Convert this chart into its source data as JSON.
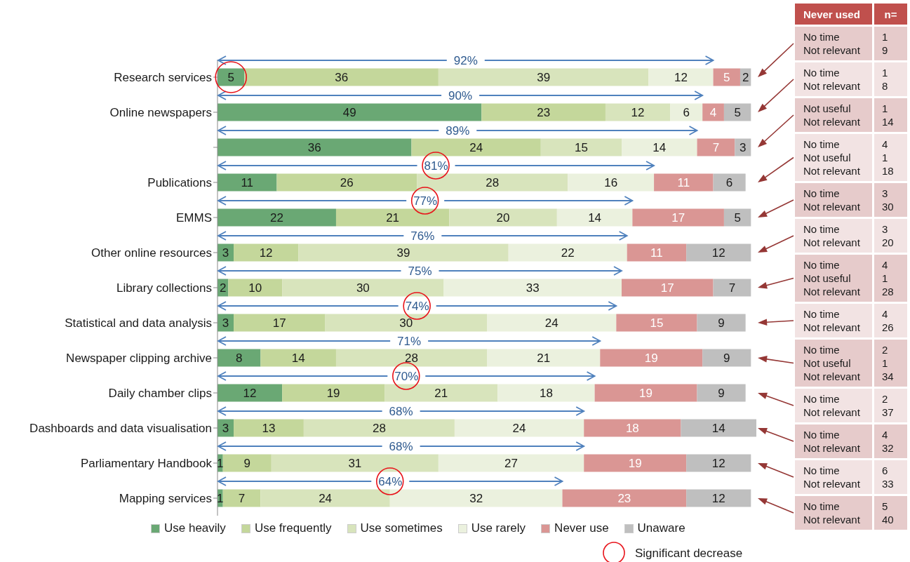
{
  "chart_data": {
    "type": "bar",
    "orientation": "horizontal",
    "stacked": true,
    "data_labels": true,
    "legend": "bottom",
    "grid": false,
    "tick_labels": "y",
    "xlim": [
      0,
      100
    ],
    "categories": [
      "Research services",
      "Online newspapers",
      null,
      "Publications",
      "EMMS",
      "Other online resources",
      "Library collections",
      "Statistical and data analysis",
      "Newspaper clipping archive",
      "Daily chamber clips",
      "Dashboards and data visualisation",
      "Parliamentary Handbook",
      "Mapping services"
    ],
    "series": [
      {
        "name": "Use heavily",
        "color": "#6aa874",
        "values": [
          5,
          49,
          36,
          11,
          22,
          3,
          2,
          3,
          8,
          12,
          3,
          1,
          1
        ]
      },
      {
        "name": "Use frequently",
        "color": "#c4d79b",
        "values": [
          36,
          23,
          24,
          26,
          21,
          12,
          10,
          17,
          14,
          19,
          13,
          9,
          7
        ]
      },
      {
        "name": "Use sometimes",
        "color": "#d8e4bc",
        "values": [
          39,
          12,
          15,
          28,
          20,
          39,
          30,
          30,
          28,
          21,
          28,
          31,
          24
        ]
      },
      {
        "name": "Use rarely",
        "color": "#ebf1de",
        "values": [
          12,
          6,
          14,
          16,
          14,
          22,
          33,
          24,
          21,
          18,
          24,
          27,
          32
        ]
      },
      {
        "name": "Never use",
        "color": "#da9694",
        "values": [
          5,
          4,
          7,
          11,
          17,
          11,
          17,
          15,
          19,
          19,
          18,
          19,
          23
        ]
      },
      {
        "name": "Unaware",
        "color": "#bfbfbf",
        "values": [
          2,
          5,
          3,
          6,
          5,
          12,
          7,
          9,
          9,
          9,
          14,
          12,
          12
        ]
      }
    ],
    "annotations": [
      "92%",
      "90%",
      "89%",
      "81%",
      "77%",
      "76%",
      "75%",
      "74%",
      "71%",
      "70%",
      "68%",
      "68%",
      "64%",
      "Significant decrease",
      "Never used",
      "n=",
      "No time\nNot relevant",
      "1\n9",
      "No time\nNot relevant",
      "1\n8",
      "Not useful\nNot relevant",
      "1\n14",
      "No time\nNot useful\nNot relevant",
      "4\n1\n18",
      "No time\nNot relevant",
      "3\n30",
      "No time\nNot relevant",
      "3\n20",
      "No time\nNot useful\nNot relevant",
      "4\n1\n28",
      "No time\nNot relevant",
      "4\n26",
      "No time\nNot useful\nNot relevant",
      "2\n1\n34",
      "No time\nNot relevant",
      "2\n37",
      "No time\nNot relevant",
      "4\n32",
      "No time\nNot relevant",
      "6\n33",
      "No time\nNot relevant",
      "5\n40"
    ]
  }
}
